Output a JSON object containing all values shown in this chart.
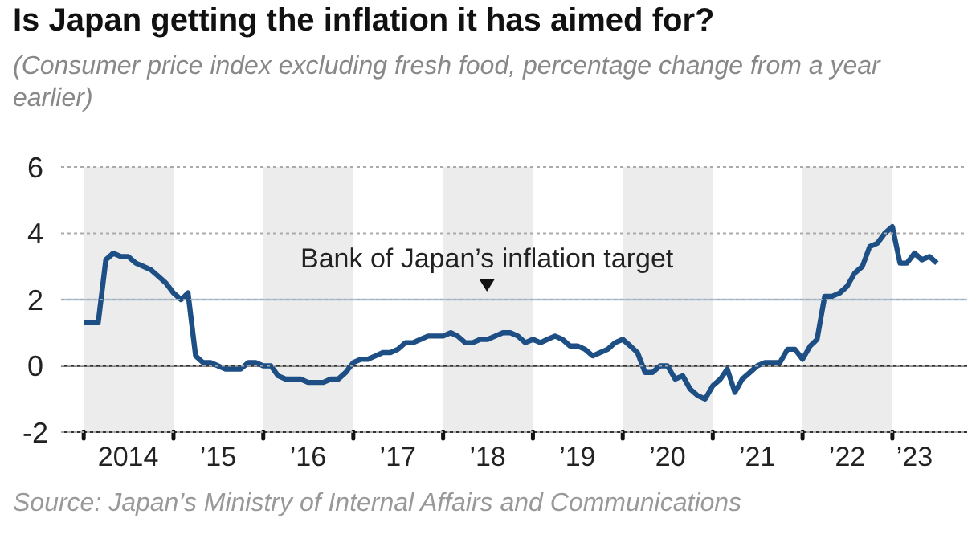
{
  "chart_data": {
    "type": "line",
    "title": "Is Japan getting the inflation it has aimed for?",
    "subtitle": "(Consumer price index excluding fresh food, percentage change from a year earlier)",
    "annotations": [
      "Source: Japan’s Ministry of Internal Affairs and Communications"
    ],
    "x": [
      "2014-01",
      "2014-02",
      "2014-03",
      "2014-04",
      "2014-05",
      "2014-06",
      "2014-07",
      "2014-08",
      "2014-09",
      "2014-10",
      "2014-11",
      "2014-12",
      "2015-01",
      "2015-02",
      "2015-03",
      "2015-04",
      "2015-05",
      "2015-06",
      "2015-07",
      "2015-08",
      "2015-09",
      "2015-10",
      "2015-11",
      "2015-12",
      "2016-01",
      "2016-02",
      "2016-03",
      "2016-04",
      "2016-05",
      "2016-06",
      "2016-07",
      "2016-08",
      "2016-09",
      "2016-10",
      "2016-11",
      "2016-12",
      "2017-01",
      "2017-02",
      "2017-03",
      "2017-04",
      "2017-05",
      "2017-06",
      "2017-07",
      "2017-08",
      "2017-09",
      "2017-10",
      "2017-11",
      "2017-12",
      "2018-01",
      "2018-02",
      "2018-03",
      "2018-04",
      "2018-05",
      "2018-06",
      "2018-07",
      "2018-08",
      "2018-09",
      "2018-10",
      "2018-11",
      "2018-12",
      "2019-01",
      "2019-02",
      "2019-03",
      "2019-04",
      "2019-05",
      "2019-06",
      "2019-07",
      "2019-08",
      "2019-09",
      "2019-10",
      "2019-11",
      "2019-12",
      "2020-01",
      "2020-02",
      "2020-03",
      "2020-04",
      "2020-05",
      "2020-06",
      "2020-07",
      "2020-08",
      "2020-09",
      "2020-10",
      "2020-11",
      "2020-12",
      "2021-01",
      "2021-02",
      "2021-03",
      "2021-04",
      "2021-05",
      "2021-06",
      "2021-07",
      "2021-08",
      "2021-09",
      "2021-10",
      "2021-11",
      "2021-12",
      "2022-01",
      "2022-02",
      "2022-03",
      "2022-04",
      "2022-05",
      "2022-06",
      "2022-07",
      "2022-08",
      "2022-09",
      "2022-10",
      "2022-11",
      "2022-12",
      "2023-01",
      "2023-02",
      "2023-03",
      "2023-04",
      "2023-05",
      "2023-06",
      "2023-07"
    ],
    "series": [
      {
        "color": "#1d4f85",
        "values": [
          1.3,
          1.3,
          1.3,
          3.2,
          3.4,
          3.3,
          3.3,
          3.1,
          3.0,
          2.9,
          2.7,
          2.5,
          2.2,
          2.0,
          2.2,
          0.3,
          0.1,
          0.1,
          0.0,
          -0.1,
          -0.1,
          -0.1,
          0.1,
          0.1,
          0.0,
          0.0,
          -0.3,
          -0.4,
          -0.4,
          -0.4,
          -0.5,
          -0.5,
          -0.5,
          -0.4,
          -0.4,
          -0.2,
          0.1,
          0.2,
          0.2,
          0.3,
          0.4,
          0.4,
          0.5,
          0.7,
          0.7,
          0.8,
          0.9,
          0.9,
          0.9,
          1.0,
          0.9,
          0.7,
          0.7,
          0.8,
          0.8,
          0.9,
          1.0,
          1.0,
          0.9,
          0.7,
          0.8,
          0.7,
          0.8,
          0.9,
          0.8,
          0.6,
          0.6,
          0.5,
          0.3,
          0.4,
          0.5,
          0.7,
          0.8,
          0.6,
          0.4,
          -0.2,
          -0.2,
          0.0,
          0.0,
          -0.4,
          -0.3,
          -0.7,
          -0.9,
          -1.0,
          -0.6,
          -0.4,
          -0.1,
          -0.8,
          -0.4,
          -0.2,
          0.0,
          0.1,
          0.1,
          0.1,
          0.5,
          0.5,
          0.2,
          0.6,
          0.8,
          2.1,
          2.1,
          2.2,
          2.4,
          2.8,
          3.0,
          3.6,
          3.7,
          4.0,
          4.2,
          3.1,
          3.1,
          3.4,
          3.2,
          3.3,
          3.1
        ]
      }
    ],
    "xlim": [
      "2013-10",
      "2023-11"
    ],
    "xticks": [
      {
        "value": "2014-01",
        "label": null
      },
      {
        "value": "2014-07",
        "label": "2014"
      },
      {
        "value": "2015-01",
        "label": null
      },
      {
        "value": "2015-07",
        "label": "’15"
      },
      {
        "value": "2016-01",
        "label": null
      },
      {
        "value": "2016-07",
        "label": "’16"
      },
      {
        "value": "2017-01",
        "label": null
      },
      {
        "value": "2017-07",
        "label": "’17"
      },
      {
        "value": "2018-01",
        "label": null
      },
      {
        "value": "2018-07",
        "label": "’18"
      },
      {
        "value": "2019-01",
        "label": null
      },
      {
        "value": "2019-07",
        "label": "’19"
      },
      {
        "value": "2020-01",
        "label": null
      },
      {
        "value": "2020-07",
        "label": "’20"
      },
      {
        "value": "2021-01",
        "label": null
      },
      {
        "value": "2021-07",
        "label": "’21"
      },
      {
        "value": "2022-01",
        "label": null
      },
      {
        "value": "2022-07",
        "label": "’22"
      },
      {
        "value": "2023-01",
        "label": null
      },
      {
        "value": "2023-04",
        "label": "’23"
      }
    ],
    "ylim": [
      -2,
      6
    ],
    "yticks": [
      -2,
      0,
      2,
      4,
      6
    ],
    "grid": "y",
    "ref_lines": [
      {
        "axis": "y",
        "value": 2,
        "label": "Bank of Japan’s inflation target",
        "color": "#a9c1d9"
      },
      {
        "axis": "y",
        "value": 0,
        "color": "#333333"
      }
    ],
    "bands": [
      {
        "axis": "x",
        "from": "2014-01",
        "to": "2015-01",
        "color": "#ececec"
      },
      {
        "axis": "x",
        "from": "2016-01",
        "to": "2017-01",
        "color": "#ececec"
      },
      {
        "axis": "x",
        "from": "2018-01",
        "to": "2019-01",
        "color": "#ececec"
      },
      {
        "axis": "x",
        "from": "2020-01",
        "to": "2021-01",
        "color": "#ececec"
      },
      {
        "axis": "x",
        "from": "2022-01",
        "to": "2023-01",
        "color": "#ececec"
      }
    ],
    "legend": false,
    "marker": "none",
    "line_style": "solid"
  }
}
